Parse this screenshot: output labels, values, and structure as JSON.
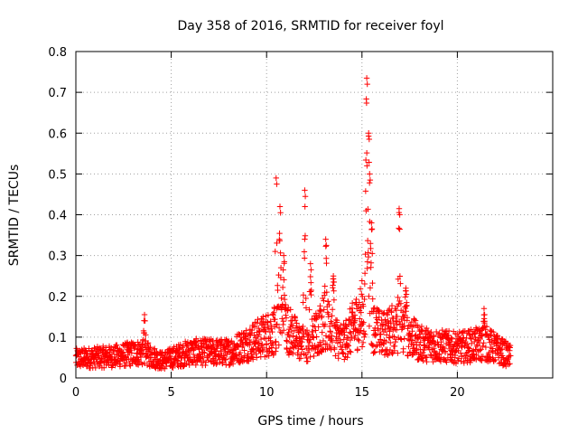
{
  "chart_data": {
    "type": "scatter",
    "title": "Day 358 of 2016, SRMTID for receiver foyl",
    "xlabel": "GPS time / hours",
    "ylabel": "SRMTID / TECUs",
    "xlim": [
      0,
      25
    ],
    "ylim": [
      0,
      0.8
    ],
    "x_ticks": [
      0,
      5,
      10,
      15,
      20
    ],
    "x_tick_labels": [
      "0",
      "5",
      "10",
      "15",
      "20"
    ],
    "y_ticks": [
      0,
      0.1,
      0.2,
      0.3,
      0.4,
      0.5,
      0.6,
      0.7,
      0.8
    ],
    "y_tick_labels": [
      "0",
      "0.1",
      "0.2",
      "0.3",
      "0.4",
      "0.5",
      "0.6",
      "0.7",
      "0.8"
    ],
    "grid": true,
    "marker": "+",
    "marker_color": "#ff0000",
    "x_range_of_data": [
      0,
      22.8
    ],
    "background_level": [
      {
        "x": 0,
        "y": 0.045
      },
      {
        "x": 2,
        "y": 0.05
      },
      {
        "x": 3.5,
        "y": 0.06
      },
      {
        "x": 4.5,
        "y": 0.04
      },
      {
        "x": 6,
        "y": 0.06
      },
      {
        "x": 8,
        "y": 0.06
      },
      {
        "x": 9.5,
        "y": 0.09
      },
      {
        "x": 11,
        "y": 0.12
      },
      {
        "x": 12,
        "y": 0.07
      },
      {
        "x": 13,
        "y": 0.13
      },
      {
        "x": 14,
        "y": 0.08
      },
      {
        "x": 15,
        "y": 0.15
      },
      {
        "x": 16,
        "y": 0.1
      },
      {
        "x": 17,
        "y": 0.12
      },
      {
        "x": 18,
        "y": 0.08
      },
      {
        "x": 20,
        "y": 0.07
      },
      {
        "x": 21.5,
        "y": 0.08
      },
      {
        "x": 22.8,
        "y": 0.05
      }
    ],
    "peaks": [
      {
        "x": 3.6,
        "y": 0.155
      },
      {
        "x": 10.5,
        "y": 0.49
      },
      {
        "x": 10.7,
        "y": 0.42
      },
      {
        "x": 10.9,
        "y": 0.3
      },
      {
        "x": 12.0,
        "y": 0.46
      },
      {
        "x": 12.3,
        "y": 0.28
      },
      {
        "x": 13.1,
        "y": 0.34
      },
      {
        "x": 13.5,
        "y": 0.25
      },
      {
        "x": 15.25,
        "y": 0.735
      },
      {
        "x": 15.35,
        "y": 0.6
      },
      {
        "x": 15.4,
        "y": 0.5
      },
      {
        "x": 15.5,
        "y": 0.38
      },
      {
        "x": 16.95,
        "y": 0.415
      },
      {
        "x": 17.3,
        "y": 0.22
      },
      {
        "x": 21.4,
        "y": 0.17
      }
    ]
  }
}
